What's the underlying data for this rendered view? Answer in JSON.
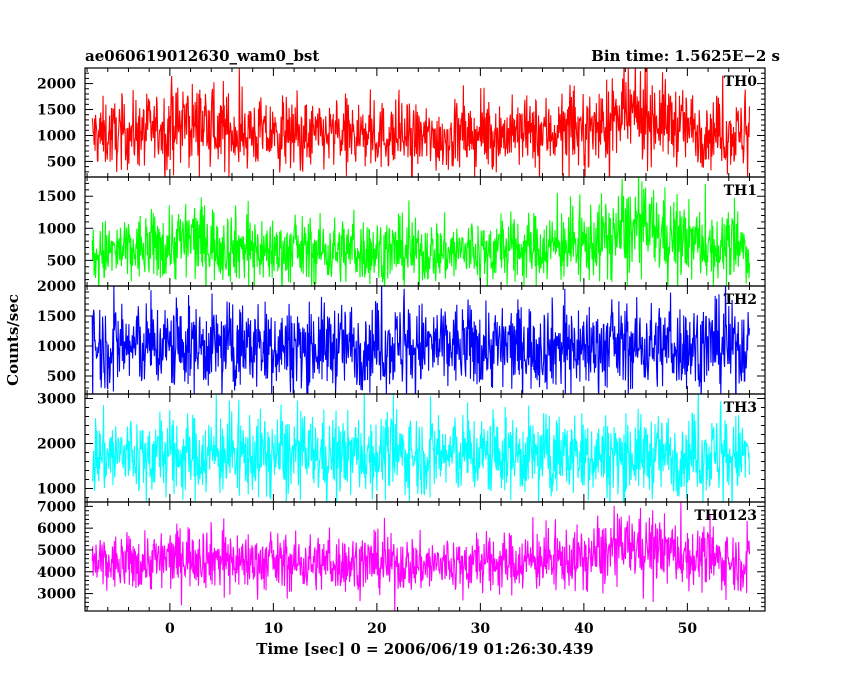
{
  "header": {
    "left": "ae060619012630_wam0_bst",
    "right": "Bin time: 1.5625E−2 s"
  },
  "chart_data": {
    "type": "line",
    "title": "ae060619012630_wam0_bst",
    "subtitle": "Bin time: 1.5625E−2 s",
    "xlabel": "Time [sec] 0 = 2006/06/19 01:26:30.439",
    "ylabel": "Counts/sec",
    "xlim": [
      -8.2,
      57.5
    ],
    "x_ticks": [
      0,
      10,
      20,
      30,
      40,
      50
    ],
    "x_tick_labels": [
      "0",
      "10",
      "20",
      "30",
      "40",
      "50"
    ],
    "x_data_range": [
      -7.5,
      56.0
    ],
    "bin_time": 0.015625,
    "panels": [
      {
        "name": "TH0",
        "color": "#ff0000",
        "ylim": [
          200,
          2300
        ],
        "y_ticks": [
          500,
          1000,
          1500,
          2000
        ],
        "y_tick_labels": [
          "500",
          "1000",
          "1500",
          "2000"
        ],
        "profile": {
          "x": [
            -7.5,
            -4,
            0,
            2,
            5,
            10,
            15,
            20,
            25,
            30,
            35,
            40,
            43,
            45,
            47,
            50,
            53,
            56
          ],
          "mean": [
            1000,
            1050,
            1150,
            1250,
            1100,
            1000,
            1000,
            1000,
            950,
            1000,
            1050,
            1100,
            1300,
            1400,
            1350,
            1150,
            1050,
            1000
          ],
          "spread": [
            330,
            340,
            360,
            390,
            360,
            330,
            330,
            330,
            320,
            330,
            340,
            360,
            400,
            420,
            410,
            360,
            340,
            330
          ]
        }
      },
      {
        "name": "TH1",
        "color": "#00ff00",
        "ylim": [
          100,
          1800
        ],
        "y_ticks": [
          500,
          1000,
          1500
        ],
        "y_tick_labels": [
          "500",
          "1000",
          "1500"
        ],
        "profile": {
          "x": [
            -7.5,
            -4,
            0,
            2,
            5,
            10,
            15,
            20,
            25,
            30,
            35,
            40,
            43,
            45,
            47,
            50,
            53,
            56
          ],
          "mean": [
            600,
            650,
            750,
            850,
            750,
            650,
            650,
            650,
            620,
            650,
            700,
            750,
            900,
            1000,
            950,
            800,
            700,
            650
          ],
          "spread": [
            250,
            260,
            290,
            320,
            290,
            260,
            260,
            260,
            250,
            260,
            270,
            290,
            330,
            350,
            340,
            300,
            270,
            260
          ]
        }
      },
      {
        "name": "TH2",
        "color": "#0000ff",
        "ylim": [
          200,
          2000
        ],
        "y_ticks": [
          500,
          1000,
          1500,
          2000
        ],
        "y_tick_labels": [
          "500",
          "1000",
          "1500",
          "2000"
        ],
        "profile": {
          "x": [
            -7.5,
            0,
            10,
            20,
            30,
            40,
            50,
            56
          ],
          "mean": [
            1000,
            1000,
            1000,
            1000,
            1000,
            1000,
            1000,
            1000
          ],
          "spread": [
            360,
            360,
            360,
            360,
            360,
            360,
            360,
            360
          ]
        }
      },
      {
        "name": "TH3",
        "color": "#00ffff",
        "ylim": [
          700,
          3100
        ],
        "y_ticks": [
          1000,
          2000,
          3000
        ],
        "y_tick_labels": [
          "1000",
          "2000",
          "3000"
        ],
        "profile": {
          "x": [
            -7.5,
            0,
            10,
            20,
            30,
            40,
            50,
            56
          ],
          "mean": [
            1750,
            1750,
            1750,
            1750,
            1750,
            1750,
            1750,
            1750
          ],
          "spread": [
            450,
            450,
            450,
            450,
            450,
            450,
            450,
            450
          ]
        }
      },
      {
        "name": "TH0123",
        "color": "#ff00ff",
        "ylim": [
          2200,
          7200
        ],
        "y_ticks": [
          3000,
          4000,
          5000,
          6000,
          7000
        ],
        "y_tick_labels": [
          "3000",
          "4000",
          "5000",
          "6000",
          "7000"
        ],
        "profile": {
          "x": [
            -7.5,
            -4,
            0,
            2,
            5,
            10,
            15,
            20,
            25,
            30,
            35,
            40,
            43,
            45,
            47,
            50,
            53,
            56
          ],
          "mean": [
            4300,
            4400,
            4600,
            4800,
            4600,
            4400,
            4400,
            4400,
            4300,
            4400,
            4500,
            4600,
            5000,
            5200,
            5100,
            4700,
            4500,
            4400
          ],
          "spread": [
            650,
            660,
            700,
            740,
            700,
            660,
            660,
            660,
            650,
            660,
            680,
            700,
            760,
            790,
            780,
            720,
            680,
            660
          ]
        }
      }
    ]
  }
}
